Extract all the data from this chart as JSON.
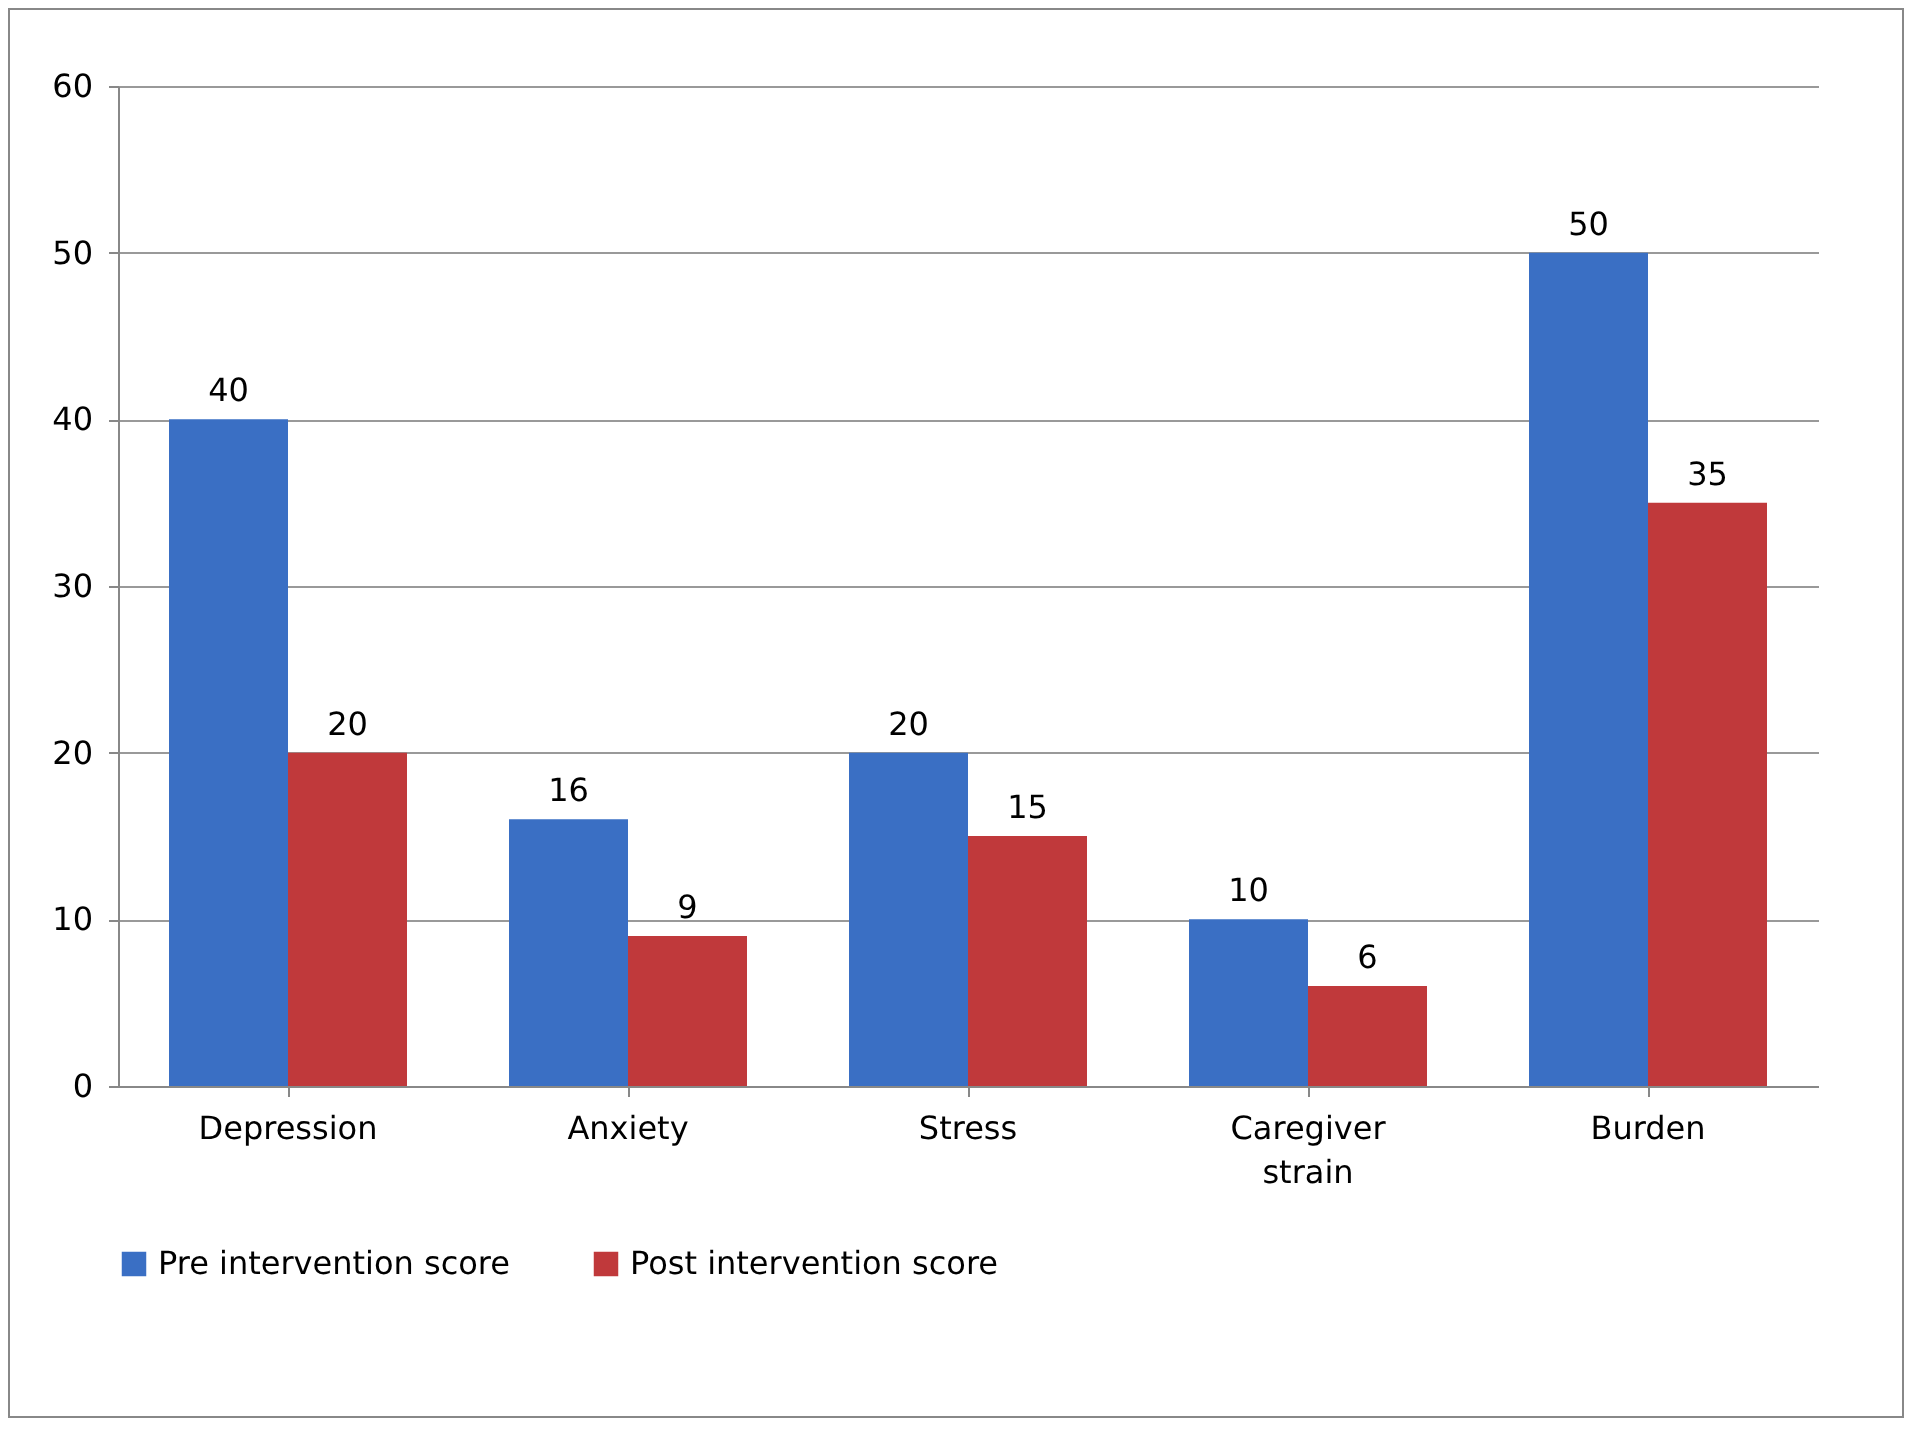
{
  "chart_data": {
    "type": "bar",
    "categories": [
      "Depression",
      "Anxiety",
      "Stress",
      "Caregiver strain",
      "Burden"
    ],
    "series": [
      {
        "name": "Pre intervention score",
        "color": "#3a6fc4",
        "values": [
          40,
          16,
          20,
          10,
          50
        ]
      },
      {
        "name": "Post intervention score",
        "color": "#c0393b",
        "values": [
          20,
          9,
          15,
          6,
          35
        ]
      }
    ],
    "ylim": [
      0,
      60
    ],
    "yticks": [
      0,
      10,
      20,
      30,
      40,
      50,
      60
    ],
    "grid": "y",
    "legend": "bottom",
    "data_labels": true
  }
}
